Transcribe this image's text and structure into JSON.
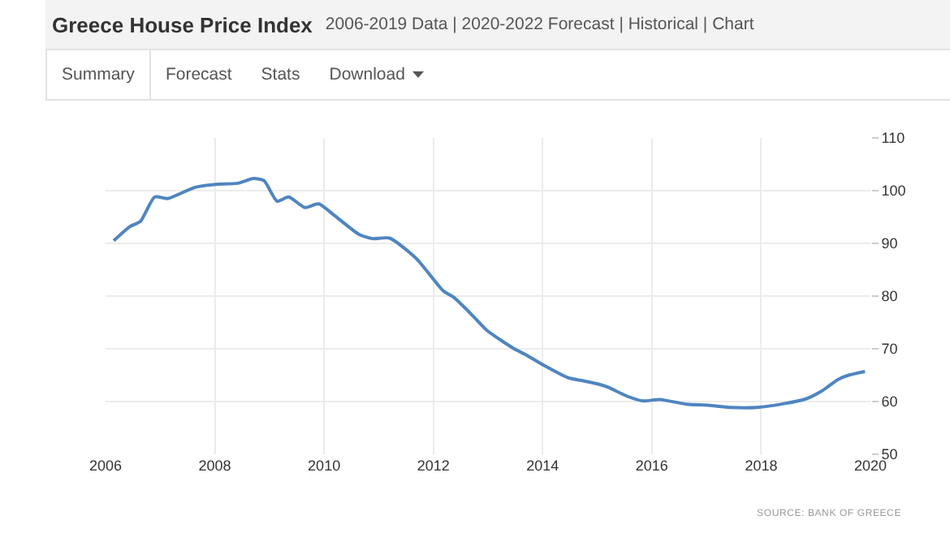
{
  "chart_data": {
    "type": "line",
    "title": "Greece House Price Index",
    "subtitle": "2006-2019 Data | 2020-2022 Forecast | Historical | Chart",
    "annotations": [
      "Summary",
      "Forecast",
      "Stats",
      "Download",
      "SOURCE: BANK OF GREECE"
    ],
    "x": [
      2006.15,
      2006.45,
      2006.64,
      2006.9,
      2007.14,
      2007.63,
      2008.02,
      2008.42,
      2008.71,
      2008.9,
      2009.14,
      2009.35,
      2009.65,
      2009.9,
      2010.2,
      2010.64,
      2010.89,
      2011.2,
      2011.69,
      2012.18,
      2012.38,
      2012.69,
      2012.98,
      2013.48,
      2013.67,
      2014.0,
      2014.47,
      2014.71,
      2015.06,
      2015.2,
      2015.55,
      2015.84,
      2016.14,
      2016.63,
      2017.03,
      2017.42,
      2017.93,
      2018.42,
      2018.82,
      2019.11,
      2019.41,
      2019.6,
      2019.9
    ],
    "series": [
      {
        "color": "#4f85c0",
        "values": [
          90.5,
          93.2,
          94.2,
          98.8,
          98.5,
          100.6,
          101.2,
          101.4,
          102.3,
          101.9,
          98,
          98.8,
          96.8,
          97.5,
          95.2,
          91.7,
          90.9,
          91,
          87.1,
          81,
          79.7,
          76.6,
          73.5,
          70,
          69,
          67,
          64.5,
          64,
          63.2,
          62.7,
          61,
          60.1,
          60.4,
          59.5,
          59.3,
          58.9,
          58.9,
          59.6,
          60.5,
          62,
          64.2,
          65,
          65.7
        ]
      }
    ],
    "xlim": [
      2006,
      2020
    ],
    "xticks": [
      2006,
      2008,
      2010,
      2012,
      2014,
      2016,
      2018,
      2020
    ],
    "ylim": [
      50,
      110
    ],
    "yticks": [
      50,
      60,
      70,
      80,
      90,
      100,
      110
    ],
    "grid": true,
    "marker": "none",
    "line_style": "solid"
  }
}
